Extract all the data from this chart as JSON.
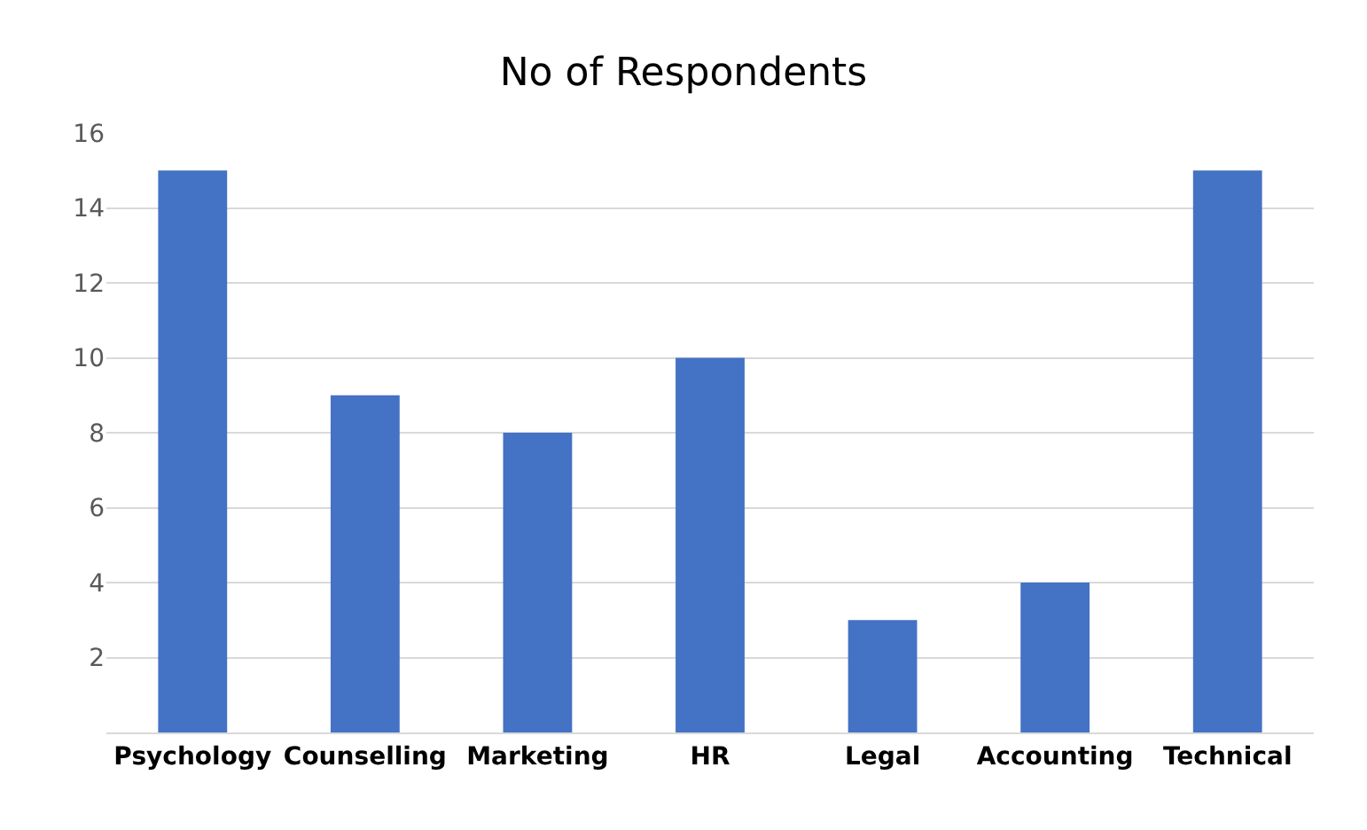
{
  "chart_data": {
    "type": "bar",
    "title": "No of Respondents",
    "categories": [
      "Psychology",
      "Counselling",
      "Marketing",
      "HR",
      "Legal",
      "Accounting",
      "Technical"
    ],
    "values": [
      15,
      9,
      8,
      10,
      3,
      4,
      15
    ],
    "color": "#4472c4",
    "ylim": [
      0,
      16
    ],
    "yticks": [
      2,
      4,
      6,
      8,
      10,
      12,
      14,
      16
    ],
    "grid": "y"
  }
}
